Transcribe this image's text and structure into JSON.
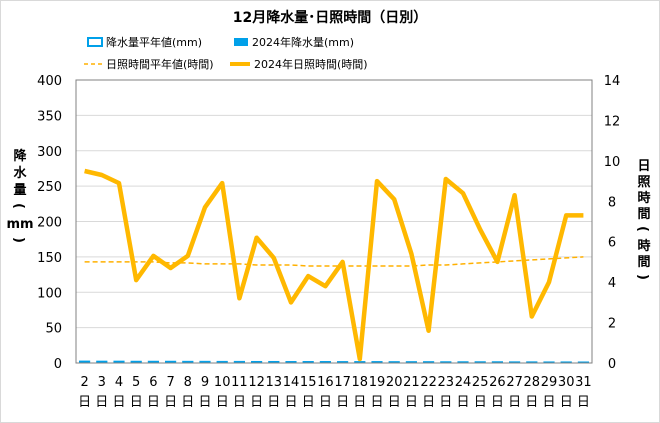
{
  "chart_data": {
    "type": "bar+line",
    "title": "12月降水量･日照時間（日別）",
    "categories": [
      "2",
      "3",
      "4",
      "5",
      "6",
      "7",
      "8",
      "9",
      "10",
      "11",
      "12",
      "13",
      "14",
      "15",
      "16",
      "17",
      "18",
      "19",
      "20",
      "21",
      "22",
      "23",
      "24",
      "25",
      "26",
      "27",
      "28",
      "29",
      "30",
      "31"
    ],
    "category_suffix": "日",
    "left_axis": {
      "title_chars": [
        "降",
        "水",
        "量",
        "(",
        "mm",
        ")"
      ],
      "ylim": [
        0,
        400
      ],
      "ticks": [
        "0",
        "50",
        "100",
        "150",
        "200",
        "250",
        "300",
        "350",
        "400"
      ]
    },
    "right_axis": {
      "title_chars": [
        "日",
        "照",
        "時",
        "間",
        "(",
        "時",
        "間",
        ")"
      ],
      "ylim": [
        0,
        14
      ],
      "ticks": [
        "0",
        "2",
        "4",
        "6",
        "8",
        "10",
        "12",
        "14"
      ]
    },
    "series": [
      {
        "name": "降水量平年値(mm)",
        "kind": "bar-outline",
        "axis": "left",
        "color": "#00A0E9",
        "values": [
          3.0,
          2.9,
          2.9,
          2.8,
          2.8,
          2.8,
          2.7,
          2.7,
          2.6,
          2.6,
          2.5,
          2.5,
          2.4,
          2.4,
          2.4,
          2.3,
          2.3,
          2.3,
          2.2,
          2.2,
          2.2,
          2.1,
          2.1,
          2.1,
          2.1,
          2.0,
          2.0,
          1.9,
          1.9,
          1.8
        ]
      },
      {
        "name": "2024年降水量(mm)",
        "kind": "bar",
        "axis": "left",
        "color": "#00A0E9",
        "values": [
          0,
          0,
          0,
          0,
          0,
          0,
          0,
          0,
          0,
          0,
          0,
          0,
          0,
          0,
          0,
          0,
          0,
          0,
          0,
          0,
          0,
          0,
          0,
          0,
          0,
          0,
          0,
          0,
          0,
          0
        ]
      },
      {
        "name": "日照時間平年値(時間)",
        "kind": "dashed-line",
        "axis": "right",
        "color": "#FFB000",
        "values": [
          5.0,
          5.0,
          5.0,
          5.0,
          5.0,
          4.95,
          4.95,
          4.9,
          4.9,
          4.9,
          4.85,
          4.85,
          4.85,
          4.8,
          4.8,
          4.8,
          4.8,
          4.8,
          4.8,
          4.8,
          4.85,
          4.85,
          4.9,
          4.95,
          5.0,
          5.05,
          5.1,
          5.15,
          5.2,
          5.25
        ]
      },
      {
        "name": "2024年日照時間(時間)",
        "kind": "line",
        "axis": "right",
        "color": "#FFB800",
        "values": [
          9.5,
          9.3,
          8.9,
          4.1,
          5.3,
          4.7,
          5.3,
          7.7,
          8.9,
          3.2,
          6.2,
          5.2,
          3.0,
          4.3,
          3.8,
          5.0,
          0.2,
          9.0,
          8.1,
          5.4,
          1.6,
          9.1,
          8.4,
          6.6,
          5.0,
          8.3,
          2.3,
          4.0,
          7.3,
          7.3
        ]
      }
    ],
    "grid": "horizontal",
    "legend_position": "top"
  }
}
